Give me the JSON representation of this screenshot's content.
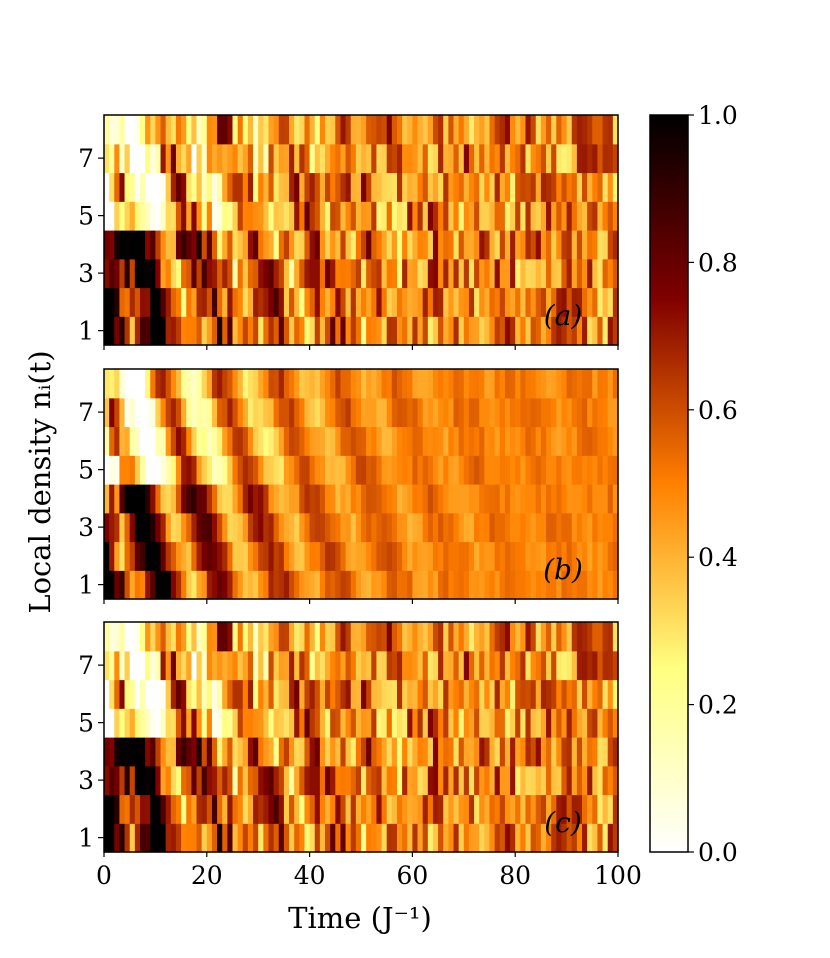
{
  "chart_data": {
    "type": "heatmap",
    "xlabel": "Time (J⁻¹)",
    "ylabel": "Local density nᵢ(t)",
    "xlim": [
      0,
      100
    ],
    "x_ticks": [
      0,
      20,
      40,
      60,
      80,
      100
    ],
    "y_ticks": [
      1,
      3,
      5,
      7
    ],
    "sites": [
      1,
      2,
      3,
      4,
      5,
      6,
      7,
      8
    ],
    "colormap": "afmhot_r",
    "colorbar": {
      "range": [
        0.0,
        1.0
      ],
      "ticks": [
        "0.0",
        "0.2",
        "0.4",
        "0.6",
        "0.8",
        "1.0"
      ]
    },
    "panels": [
      {
        "label": "(a)",
        "late_time_fluctuation": "large",
        "approx_late_mean": 0.5
      },
      {
        "label": "(b)",
        "late_time_fluctuation": "small",
        "approx_late_mean": 0.5
      },
      {
        "label": "(c)",
        "late_time_fluctuation": "large",
        "approx_late_mean": 0.5
      }
    ],
    "initial_density": [
      1,
      1,
      1,
      1,
      0,
      0,
      0,
      0
    ],
    "colors": {
      "frame": "#000000",
      "background": "#ffffff"
    }
  }
}
